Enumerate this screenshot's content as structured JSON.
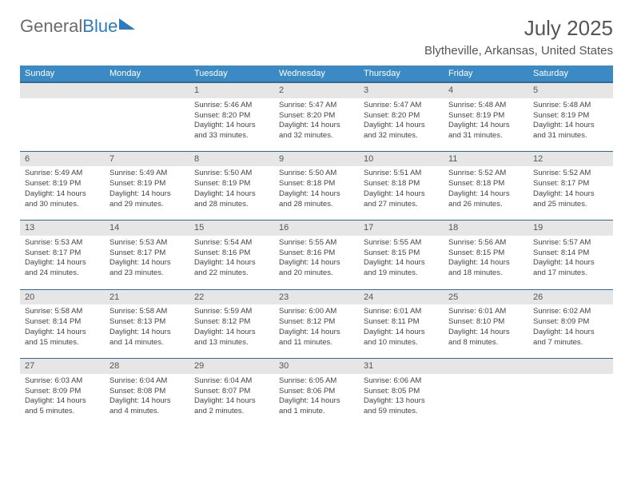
{
  "brand": {
    "word1": "General",
    "word2": "Blue"
  },
  "title": "July 2025",
  "location": "Blytheville, Arkansas, United States",
  "colors": {
    "header_bg": "#3b8ac4",
    "header_border": "#2e6a9a",
    "daynum_bg": "#e6e6e6",
    "text": "#444444",
    "brand_gray": "#6b6b6b",
    "brand_blue": "#2a7bbf"
  },
  "weekdays": [
    "Sunday",
    "Monday",
    "Tuesday",
    "Wednesday",
    "Thursday",
    "Friday",
    "Saturday"
  ],
  "weeks": [
    [
      {
        "blank": true
      },
      {
        "blank": true
      },
      {
        "n": "1",
        "sr": "Sunrise: 5:46 AM",
        "ss": "Sunset: 8:20 PM",
        "dl": "Daylight: 14 hours and 33 minutes."
      },
      {
        "n": "2",
        "sr": "Sunrise: 5:47 AM",
        "ss": "Sunset: 8:20 PM",
        "dl": "Daylight: 14 hours and 32 minutes."
      },
      {
        "n": "3",
        "sr": "Sunrise: 5:47 AM",
        "ss": "Sunset: 8:20 PM",
        "dl": "Daylight: 14 hours and 32 minutes."
      },
      {
        "n": "4",
        "sr": "Sunrise: 5:48 AM",
        "ss": "Sunset: 8:19 PM",
        "dl": "Daylight: 14 hours and 31 minutes."
      },
      {
        "n": "5",
        "sr": "Sunrise: 5:48 AM",
        "ss": "Sunset: 8:19 PM",
        "dl": "Daylight: 14 hours and 31 minutes."
      }
    ],
    [
      {
        "n": "6",
        "sr": "Sunrise: 5:49 AM",
        "ss": "Sunset: 8:19 PM",
        "dl": "Daylight: 14 hours and 30 minutes."
      },
      {
        "n": "7",
        "sr": "Sunrise: 5:49 AM",
        "ss": "Sunset: 8:19 PM",
        "dl": "Daylight: 14 hours and 29 minutes."
      },
      {
        "n": "8",
        "sr": "Sunrise: 5:50 AM",
        "ss": "Sunset: 8:19 PM",
        "dl": "Daylight: 14 hours and 28 minutes."
      },
      {
        "n": "9",
        "sr": "Sunrise: 5:50 AM",
        "ss": "Sunset: 8:18 PM",
        "dl": "Daylight: 14 hours and 28 minutes."
      },
      {
        "n": "10",
        "sr": "Sunrise: 5:51 AM",
        "ss": "Sunset: 8:18 PM",
        "dl": "Daylight: 14 hours and 27 minutes."
      },
      {
        "n": "11",
        "sr": "Sunrise: 5:52 AM",
        "ss": "Sunset: 8:18 PM",
        "dl": "Daylight: 14 hours and 26 minutes."
      },
      {
        "n": "12",
        "sr": "Sunrise: 5:52 AM",
        "ss": "Sunset: 8:17 PM",
        "dl": "Daylight: 14 hours and 25 minutes."
      }
    ],
    [
      {
        "n": "13",
        "sr": "Sunrise: 5:53 AM",
        "ss": "Sunset: 8:17 PM",
        "dl": "Daylight: 14 hours and 24 minutes."
      },
      {
        "n": "14",
        "sr": "Sunrise: 5:53 AM",
        "ss": "Sunset: 8:17 PM",
        "dl": "Daylight: 14 hours and 23 minutes."
      },
      {
        "n": "15",
        "sr": "Sunrise: 5:54 AM",
        "ss": "Sunset: 8:16 PM",
        "dl": "Daylight: 14 hours and 22 minutes."
      },
      {
        "n": "16",
        "sr": "Sunrise: 5:55 AM",
        "ss": "Sunset: 8:16 PM",
        "dl": "Daylight: 14 hours and 20 minutes."
      },
      {
        "n": "17",
        "sr": "Sunrise: 5:55 AM",
        "ss": "Sunset: 8:15 PM",
        "dl": "Daylight: 14 hours and 19 minutes."
      },
      {
        "n": "18",
        "sr": "Sunrise: 5:56 AM",
        "ss": "Sunset: 8:15 PM",
        "dl": "Daylight: 14 hours and 18 minutes."
      },
      {
        "n": "19",
        "sr": "Sunrise: 5:57 AM",
        "ss": "Sunset: 8:14 PM",
        "dl": "Daylight: 14 hours and 17 minutes."
      }
    ],
    [
      {
        "n": "20",
        "sr": "Sunrise: 5:58 AM",
        "ss": "Sunset: 8:14 PM",
        "dl": "Daylight: 14 hours and 15 minutes."
      },
      {
        "n": "21",
        "sr": "Sunrise: 5:58 AM",
        "ss": "Sunset: 8:13 PM",
        "dl": "Daylight: 14 hours and 14 minutes."
      },
      {
        "n": "22",
        "sr": "Sunrise: 5:59 AM",
        "ss": "Sunset: 8:12 PM",
        "dl": "Daylight: 14 hours and 13 minutes."
      },
      {
        "n": "23",
        "sr": "Sunrise: 6:00 AM",
        "ss": "Sunset: 8:12 PM",
        "dl": "Daylight: 14 hours and 11 minutes."
      },
      {
        "n": "24",
        "sr": "Sunrise: 6:01 AM",
        "ss": "Sunset: 8:11 PM",
        "dl": "Daylight: 14 hours and 10 minutes."
      },
      {
        "n": "25",
        "sr": "Sunrise: 6:01 AM",
        "ss": "Sunset: 8:10 PM",
        "dl": "Daylight: 14 hours and 8 minutes."
      },
      {
        "n": "26",
        "sr": "Sunrise: 6:02 AM",
        "ss": "Sunset: 8:09 PM",
        "dl": "Daylight: 14 hours and 7 minutes."
      }
    ],
    [
      {
        "n": "27",
        "sr": "Sunrise: 6:03 AM",
        "ss": "Sunset: 8:09 PM",
        "dl": "Daylight: 14 hours and 5 minutes."
      },
      {
        "n": "28",
        "sr": "Sunrise: 6:04 AM",
        "ss": "Sunset: 8:08 PM",
        "dl": "Daylight: 14 hours and 4 minutes."
      },
      {
        "n": "29",
        "sr": "Sunrise: 6:04 AM",
        "ss": "Sunset: 8:07 PM",
        "dl": "Daylight: 14 hours and 2 minutes."
      },
      {
        "n": "30",
        "sr": "Sunrise: 6:05 AM",
        "ss": "Sunset: 8:06 PM",
        "dl": "Daylight: 14 hours and 1 minute."
      },
      {
        "n": "31",
        "sr": "Sunrise: 6:06 AM",
        "ss": "Sunset: 8:05 PM",
        "dl": "Daylight: 13 hours and 59 minutes."
      },
      {
        "blank": true
      },
      {
        "blank": true
      }
    ]
  ]
}
